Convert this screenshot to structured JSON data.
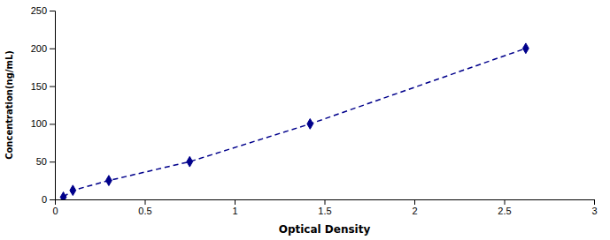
{
  "chart_data": {
    "type": "line",
    "xlabel": "Optical Density",
    "ylabel": "Concentration(ng/mL)",
    "x": [
      0.047,
      0.1,
      0.3,
      0.75,
      1.42,
      2.62
    ],
    "values": [
      3,
      12,
      25,
      50,
      100,
      200
    ],
    "color": "#00008B",
    "marker": "diamond",
    "line_style": "dashed",
    "xlim": [
      0,
      3
    ],
    "ylim": [
      0,
      250
    ],
    "xticks": [
      0,
      0.5,
      1,
      1.5,
      2,
      2.5,
      3
    ],
    "yticks": [
      0,
      50,
      100,
      150,
      200,
      250
    ],
    "grid": false
  }
}
